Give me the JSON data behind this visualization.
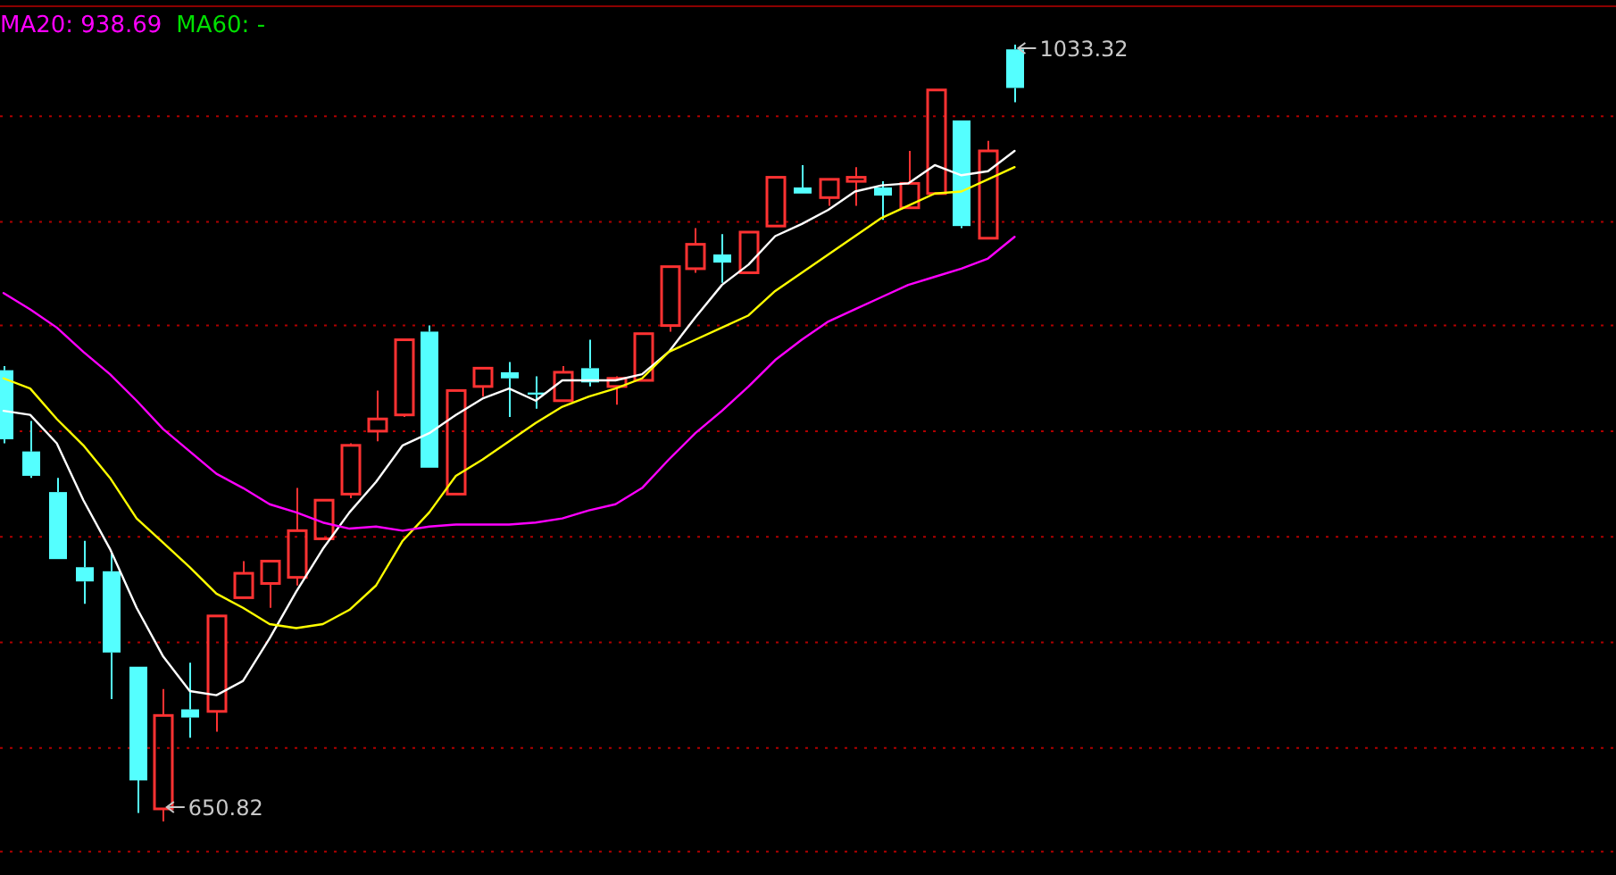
{
  "chart_data": {
    "type": "candlestick",
    "categories": [
      null,
      null,
      null,
      null,
      null,
      null,
      null,
      null,
      null,
      null,
      null,
      null,
      null,
      null,
      null,
      null,
      null,
      null,
      null,
      null,
      null,
      null,
      null,
      null,
      null,
      null,
      null,
      null,
      null,
      null,
      null,
      null,
      null,
      null,
      null,
      null,
      null,
      null,
      null
    ],
    "ohlc": [
      [
        873,
        875,
        837,
        839
      ],
      [
        833,
        848,
        820,
        821
      ],
      [
        813,
        820,
        780,
        780
      ],
      [
        776,
        789,
        758,
        769
      ],
      [
        774,
        783,
        711,
        734
      ],
      [
        727,
        727,
        655,
        671
      ],
      [
        657,
        716,
        650.82,
        703
      ],
      [
        706,
        729,
        692,
        702
      ],
      [
        705,
        752,
        695,
        752
      ],
      [
        761,
        779,
        761,
        773
      ],
      [
        768,
        779,
        756,
        779
      ],
      [
        771,
        815,
        767,
        794
      ],
      [
        790,
        809,
        790,
        809
      ],
      [
        812,
        837,
        810,
        836
      ],
      [
        843,
        863,
        838,
        849
      ],
      [
        851,
        888,
        850,
        888
      ],
      [
        892,
        895,
        825,
        825
      ],
      [
        812,
        863,
        812,
        863
      ],
      [
        865,
        874,
        860,
        874
      ],
      [
        872,
        877,
        850,
        869
      ],
      [
        862,
        870,
        854,
        861
      ],
      [
        858,
        875,
        858,
        872
      ],
      [
        874,
        888,
        865,
        867
      ],
      [
        865,
        870,
        856,
        869
      ],
      [
        868,
        891,
        868,
        891
      ],
      [
        895,
        924,
        892,
        924
      ],
      [
        923,
        943,
        921,
        935
      ],
      [
        930,
        940,
        916,
        926
      ],
      [
        921,
        941,
        921,
        941
      ],
      [
        944,
        968,
        944,
        968
      ],
      [
        963,
        974,
        960,
        960
      ],
      [
        958,
        967,
        954,
        967
      ],
      [
        966,
        973,
        954,
        968
      ],
      [
        963,
        966,
        947,
        959
      ],
      [
        953,
        981,
        953,
        965
      ],
      [
        960,
        1011,
        960,
        1011
      ],
      [
        996,
        996,
        943,
        944
      ],
      [
        938,
        986,
        938,
        981
      ],
      [
        1031,
        1033.32,
        1005,
        1012
      ]
    ],
    "colors": [
      "#54ffff",
      "#54ffff",
      "#54ffff",
      "#54ffff",
      "#54ffff",
      "#54ffff",
      "#ff3232",
      "#54ffff",
      "#ff3232",
      "#ff3232",
      "#ff3232",
      "#ff3232",
      "#ff3232",
      "#ff3232",
      "#ff3232",
      "#ff3232",
      "#54ffff",
      "#ff3232",
      "#ff3232",
      "#54ffff",
      "#54ffff",
      "#ff3232",
      "#54ffff",
      "#ff3232",
      "#ff3232",
      "#ff3232",
      "#ff3232",
      "#54ffff",
      "#ff3232",
      "#ff3232",
      "#54ffff",
      "#ff3232",
      "#ff3232",
      "#54ffff",
      "#ff3232",
      "#ff3232",
      "#54ffff",
      "#ff3232",
      "#54ffff"
    ],
    "series": [
      {
        "type": "line",
        "color": "#ffffff",
        "values": [
          853,
          851,
          837,
          809,
          785,
          756,
          732,
          715,
          713,
          720,
          741,
          764,
          785,
          803,
          818,
          836,
          842,
          851,
          859,
          864,
          858,
          868,
          868,
          868,
          871,
          882,
          899,
          915,
          925,
          939,
          945,
          952,
          961,
          964,
          965,
          974,
          969,
          971,
          981
        ]
      },
      {
        "type": "line",
        "color": "#ffff00",
        "values": [
          869,
          864,
          849,
          836,
          820,
          800,
          788,
          776,
          763,
          756,
          748,
          746,
          748,
          755,
          767,
          789,
          803,
          821,
          829,
          838,
          847,
          855,
          860,
          864,
          869,
          882,
          888,
          894,
          900,
          912,
          921,
          930,
          939,
          948,
          954,
          960,
          961,
          967,
          973
        ]
      },
      {
        "type": "line",
        "name": "MA20: 938.69",
        "color": "#ff00ff",
        "values": [
          911,
          903,
          894,
          882,
          871,
          858,
          844,
          833,
          822,
          815,
          807,
          803,
          798,
          795,
          796,
          794,
          796,
          797,
          797,
          797,
          798,
          800,
          804,
          807,
          815,
          829,
          842,
          853,
          865,
          878,
          888,
          897,
          903,
          909,
          915,
          919,
          923,
          928,
          938.69
        ]
      },
      {
        "type": "line",
        "name": "MA60: -",
        "color": "#00e000",
        "values": [
          null,
          null,
          null,
          null,
          null,
          null,
          null,
          null,
          null,
          null,
          null,
          null,
          null,
          null,
          null,
          null,
          null,
          null,
          null,
          null,
          null,
          null,
          null,
          null,
          null,
          null,
          null,
          null,
          null,
          null,
          null,
          null,
          null,
          null,
          null,
          null,
          null,
          null,
          null
        ]
      }
    ],
    "annotations": [
      "1033.32",
      "650.82"
    ],
    "yticks": [
      {
        "value": 998,
        "label": null
      },
      {
        "value": 946,
        "label": null
      },
      {
        "value": 895,
        "label": null
      },
      {
        "value": 843,
        "label": null
      },
      {
        "value": 791,
        "label": null
      },
      {
        "value": 739,
        "label": null
      },
      {
        "value": 687,
        "label": null
      },
      {
        "value": 636,
        "label": null
      }
    ],
    "grid": true,
    "legend": "top left"
  }
}
